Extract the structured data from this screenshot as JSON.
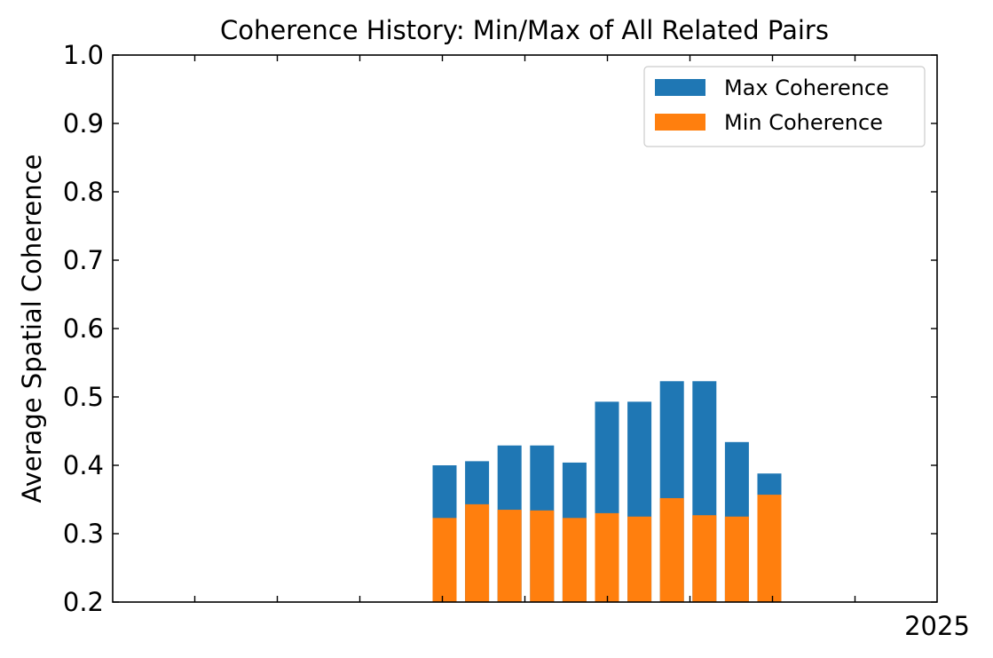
{
  "chart_data": {
    "type": "bar",
    "stacked": false,
    "title": "Coherence History: Min/Max of All Related Pairs",
    "xlabel": "",
    "ylabel": "Average Spatial Coherence",
    "ylim": [
      0.2,
      1.0
    ],
    "yticks": [
      "0.2",
      "0.3",
      "0.4",
      "0.5",
      "0.6",
      "0.7",
      "0.8",
      "0.9",
      "1.0"
    ],
    "xtick_labels": [
      "2025"
    ],
    "legend_position": "top-right",
    "grid": false,
    "colors": {
      "max": "#1f77b4",
      "min": "#ff7f0e"
    },
    "series": [
      {
        "name": "Max Coherence",
        "key": "max",
        "values": [
          0.4,
          0.406,
          0.429,
          0.429,
          0.404,
          0.493,
          0.493,
          0.523,
          0.523,
          0.434,
          0.388
        ]
      },
      {
        "name": "Min Coherence",
        "key": "min",
        "values": [
          0.323,
          0.343,
          0.335,
          0.334,
          0.323,
          0.33,
          0.325,
          0.352,
          0.327,
          0.325,
          0.357
        ]
      }
    ]
  }
}
